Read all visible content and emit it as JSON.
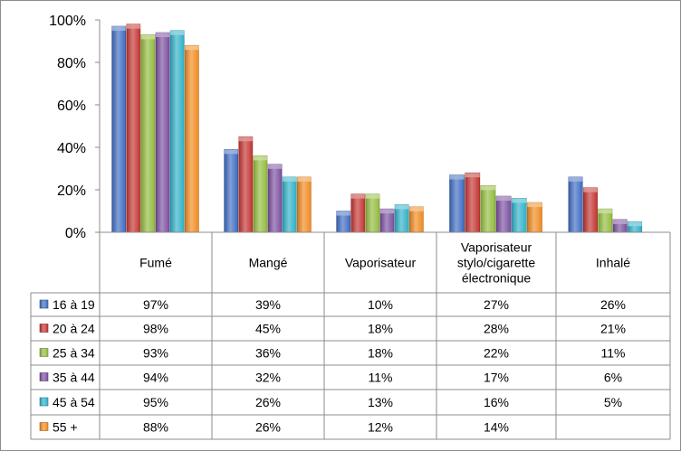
{
  "chart_data": {
    "type": "bar",
    "categories": [
      "Fumé",
      "Mangé",
      "Vaporisateur",
      "Vaporisateur\nstylo/cigarette\nélectronique",
      "Inhalé"
    ],
    "y_ticks": [
      "0%",
      "20%",
      "40%",
      "60%",
      "80%",
      "100%"
    ],
    "ylim": [
      0,
      100
    ],
    "grid": false,
    "legend": "data-table",
    "series": [
      {
        "name": "16 à 19",
        "color": "#3e6cc1",
        "values": [
          97,
          39,
          10,
          27,
          26
        ],
        "labels": [
          "97%",
          "39%",
          "10%",
          "27%",
          "26%"
        ]
      },
      {
        "name": "20 à 24",
        "color": "#c33431",
        "values": [
          98,
          45,
          18,
          28,
          21
        ],
        "labels": [
          "98%",
          "45%",
          "18%",
          "28%",
          "21%"
        ]
      },
      {
        "name": "25 à 34",
        "color": "#92bc3d",
        "values": [
          93,
          36,
          18,
          22,
          11
        ],
        "labels": [
          "93%",
          "36%",
          "18%",
          "22%",
          "11%"
        ]
      },
      {
        "name": "35 à 44",
        "color": "#7a4f9f",
        "values": [
          94,
          32,
          11,
          17,
          6
        ],
        "labels": [
          "94%",
          "32%",
          "11%",
          "17%",
          "6%"
        ]
      },
      {
        "name": "45 à 54",
        "color": "#2fb0c8",
        "values": [
          95,
          26,
          13,
          16,
          5
        ],
        "labels": [
          "95%",
          "26%",
          "13%",
          "16%",
          "5%"
        ]
      },
      {
        "name": "55 +",
        "color": "#f08a20",
        "values": [
          88,
          26,
          12,
          14,
          null
        ],
        "labels": [
          "88%",
          "26%",
          "12%",
          "14%",
          ""
        ]
      }
    ]
  }
}
